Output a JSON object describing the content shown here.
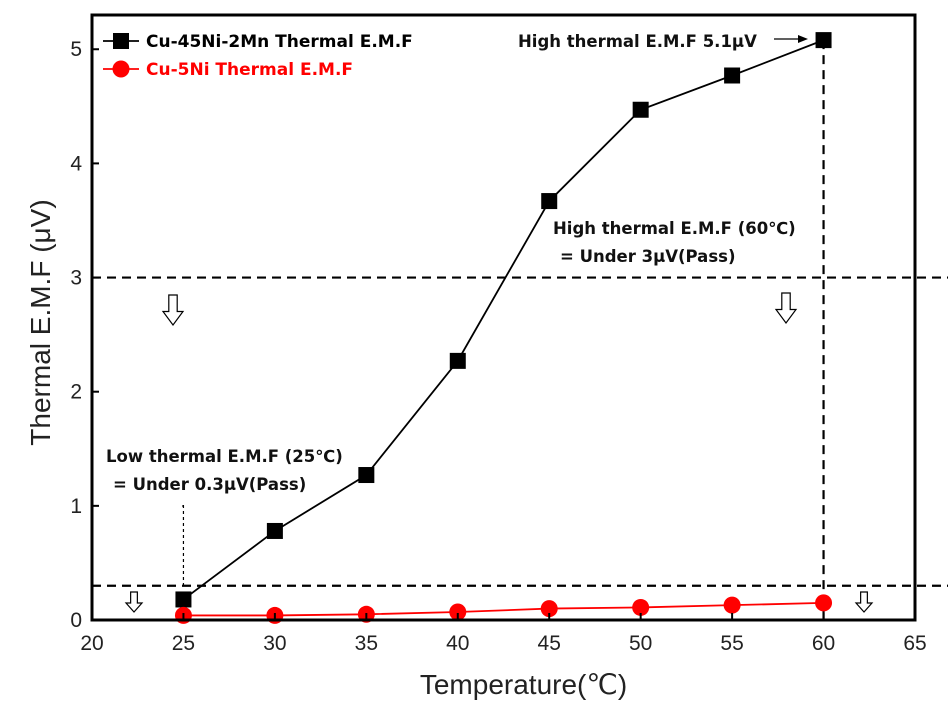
{
  "chart_data": {
    "type": "line",
    "xlabel": "Temperature(℃)",
    "ylabel": "Thermal E.M.F (μV)",
    "xlim": [
      20,
      65
    ],
    "ylim": [
      0,
      5.3
    ],
    "x_ticks": [
      "20",
      "25",
      "30",
      "35",
      "40",
      "45",
      "50",
      "55",
      "60",
      "65"
    ],
    "y_ticks": [
      "0",
      "1",
      "2",
      "3",
      "4",
      "5"
    ],
    "x": [
      25,
      30,
      35,
      40,
      45,
      50,
      55,
      60
    ],
    "series": [
      {
        "name": "Cu-45Ni-2Mn Thermal E.M.F",
        "color": "#000000",
        "marker": "square",
        "values": [
          0.18,
          0.78,
          1.27,
          2.27,
          3.67,
          4.47,
          4.77,
          5.08
        ]
      },
      {
        "name": "Cu-5Ni Thermal E.M.F",
        "color": "#ff0000",
        "marker": "circle",
        "values": [
          0.04,
          0.04,
          0.05,
          0.07,
          0.1,
          0.11,
          0.13,
          0.15
        ]
      }
    ],
    "reference_lines": {
      "horizontal": [
        3.0,
        0.3
      ],
      "vertical": [
        25,
        60
      ]
    },
    "annotations": {
      "peak": "High thermal E.M.F 5.1μV",
      "high_line1": "High thermal E.M.F (60℃)",
      "high_line2": "= Under 3μV(Pass)",
      "low_line1": "Low thermal E.M.F (25℃)",
      "low_line2": "= Under 0.3μV(Pass)"
    },
    "grid": false,
    "legend_position": "top-left"
  }
}
